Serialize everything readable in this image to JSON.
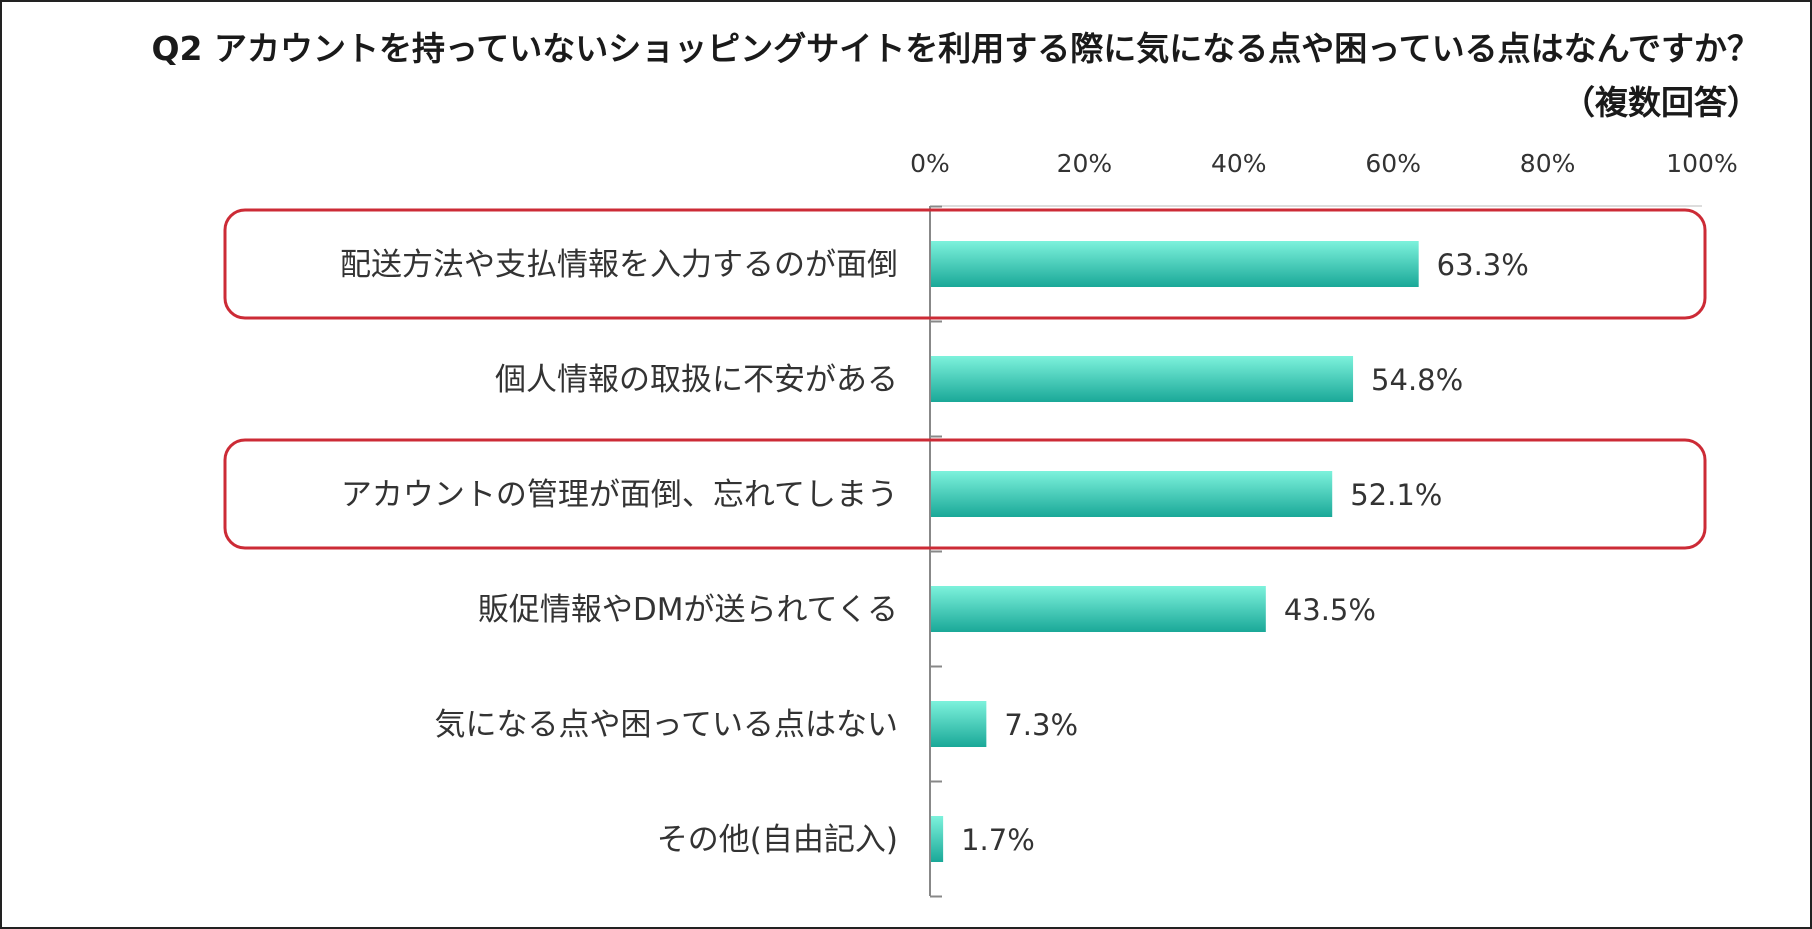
{
  "chart_data": {
    "type": "bar",
    "orientation": "horizontal",
    "title": "Q2 アカウントを持っていないショッピングサイトを利用する際に気になる点や困っている点はなんですか？",
    "subtitle": "（複数回答）",
    "categories": [
      "配送方法や支払情報を入力するのが面倒",
      "個人情報の取扱に不安がある",
      "アカウントの管理が面倒、忘れてしまう",
      "販促情報やDMが送られてくる",
      "気になる点や困っている点はない",
      "その他(自由記入)"
    ],
    "values": [
      63.3,
      54.8,
      52.1,
      43.5,
      7.3,
      1.7
    ],
    "data_labels": [
      "63.3%",
      "54.8%",
      "52.1%",
      "43.5%",
      "7.3%",
      "1.7%"
    ],
    "xlim": [
      0,
      100
    ],
    "ticks": [
      "0%",
      "20%",
      "40%",
      "60%",
      "80%",
      "100%"
    ],
    "tick_values": [
      0,
      20,
      40,
      60,
      80,
      100
    ],
    "highlighted_categories": [
      0,
      2
    ],
    "grid": false,
    "legend": "none",
    "colors": {
      "bar_top": "#7df2dc",
      "bar_bottom": "#1aa898",
      "highlight_border": "#cc2b36",
      "text": "#333333"
    }
  }
}
